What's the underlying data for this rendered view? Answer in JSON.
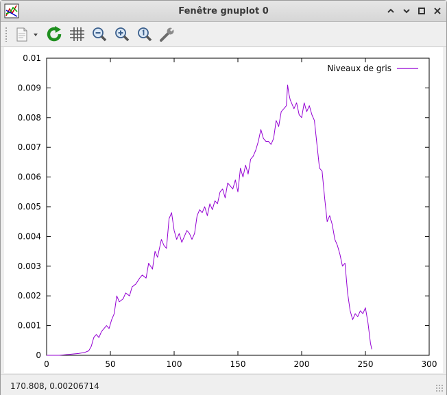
{
  "window": {
    "title": "Fenêtre gnuplot 0",
    "icon": "gnuplot-app-icon",
    "controls": [
      "minimize-icon",
      "maximize-icon",
      "restore-icon",
      "close-icon"
    ]
  },
  "toolbar": {
    "buttons": [
      "export-icon",
      "dropdown-arrow-icon",
      "replot-icon",
      "grid-icon",
      "zoom-out-icon",
      "zoom-in-icon",
      "zoom-reset-icon",
      "settings-wrench-icon"
    ]
  },
  "status": {
    "text": "170.808,  0.00206714"
  },
  "colors": {
    "series": "#9400d3",
    "titlebar": "#d9d9d9",
    "plot_bg": "#ffffff"
  },
  "chart_data": {
    "type": "line",
    "title": "",
    "xlabel": "",
    "ylabel": "",
    "xlim": [
      0,
      300
    ],
    "ylim": [
      0,
      0.01
    ],
    "grid": false,
    "legend_position": "top-right",
    "x_ticks": [
      "0",
      "50",
      "100",
      "150",
      "200",
      "250",
      "300"
    ],
    "y_ticks": [
      "0",
      "0.001",
      "0.002",
      "0.003",
      "0.004",
      "0.005",
      "0.006",
      "0.007",
      "0.008",
      "0.009",
      "0.01"
    ],
    "series": [
      {
        "name": "Niveaux de gris",
        "x": [
          0,
          10,
          15,
          20,
          25,
          30,
          33,
          35,
          37,
          39,
          41,
          43,
          45,
          47,
          49,
          51,
          53,
          55,
          57,
          60,
          62,
          65,
          67,
          70,
          73,
          75,
          78,
          80,
          83,
          85,
          87,
          90,
          92,
          94,
          96,
          98,
          100,
          102,
          104,
          106,
          108,
          110,
          112,
          114,
          116,
          118,
          120,
          122,
          124,
          126,
          128,
          130,
          132,
          134,
          136,
          138,
          140,
          142,
          144,
          146,
          148,
          150,
          152,
          154,
          156,
          158,
          160,
          162,
          164,
          166,
          168,
          170,
          172,
          174,
          176,
          178,
          180,
          182,
          184,
          186,
          188,
          189,
          190,
          191,
          192,
          194,
          196,
          198,
          200,
          202,
          204,
          206,
          208,
          210,
          212,
          214,
          216,
          218,
          220,
          222,
          224,
          226,
          228,
          230,
          232,
          234,
          236,
          238,
          240,
          242,
          244,
          246,
          248,
          250,
          252,
          254,
          255
        ],
        "y": [
          0,
          0,
          2e-05,
          4e-05,
          6e-05,
          0.0001,
          0.00015,
          0.0003,
          0.0006,
          0.0007,
          0.0006,
          0.0008,
          0.0009,
          0.001,
          0.0009,
          0.0012,
          0.0014,
          0.002,
          0.0018,
          0.0019,
          0.0021,
          0.002,
          0.0023,
          0.0024,
          0.0026,
          0.0027,
          0.0026,
          0.0031,
          0.0029,
          0.0035,
          0.0033,
          0.0039,
          0.0037,
          0.0036,
          0.0046,
          0.0048,
          0.0042,
          0.0039,
          0.0041,
          0.0038,
          0.004,
          0.0042,
          0.0041,
          0.0039,
          0.0041,
          0.0047,
          0.0049,
          0.0048,
          0.005,
          0.0047,
          0.0051,
          0.0049,
          0.0052,
          0.0051,
          0.0055,
          0.0056,
          0.0053,
          0.0058,
          0.0057,
          0.0056,
          0.0059,
          0.0055,
          0.0063,
          0.006,
          0.0064,
          0.0061,
          0.0066,
          0.0067,
          0.0069,
          0.0072,
          0.0076,
          0.0073,
          0.0072,
          0.0072,
          0.0071,
          0.0073,
          0.0079,
          0.0077,
          0.0082,
          0.0083,
          0.0084,
          0.0091,
          0.0088,
          0.0086,
          0.0085,
          0.0083,
          0.0085,
          0.0081,
          0.008,
          0.0085,
          0.0082,
          0.0084,
          0.0081,
          0.0079,
          0.0071,
          0.0063,
          0.0062,
          0.0053,
          0.0045,
          0.0047,
          0.0044,
          0.0039,
          0.0037,
          0.0034,
          0.003,
          0.0031,
          0.0021,
          0.0015,
          0.0012,
          0.0014,
          0.0013,
          0.0015,
          0.0014,
          0.0016,
          0.0011,
          0.0004,
          0.0002
        ]
      }
    ]
  }
}
